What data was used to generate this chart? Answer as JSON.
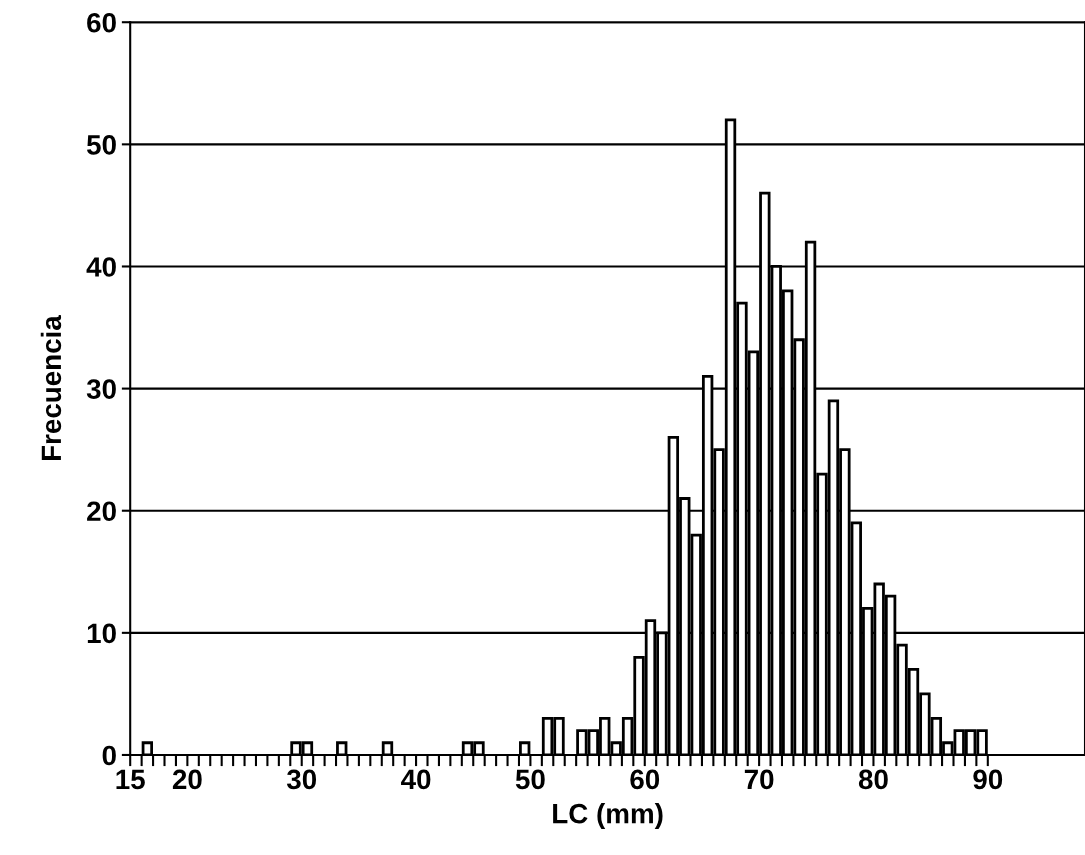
{
  "chart_data": {
    "type": "histogram",
    "xlabel": "LC (mm)",
    "ylabel": "Frecuencia",
    "bins": [
      15,
      16,
      17,
      18,
      19,
      20,
      21,
      22,
      23,
      24,
      25,
      26,
      27,
      28,
      29,
      30,
      31,
      32,
      33,
      34,
      35,
      36,
      37,
      38,
      39,
      40,
      41,
      42,
      43,
      44,
      45,
      46,
      47,
      48,
      49,
      50,
      51,
      52,
      53,
      54,
      55,
      56,
      57,
      58,
      59,
      60,
      61,
      62,
      63,
      64,
      65,
      66,
      67,
      68,
      69,
      70,
      71,
      72,
      73,
      74,
      75,
      76,
      77,
      78,
      79,
      80,
      81,
      82,
      83,
      84,
      85,
      86,
      87,
      88,
      89,
      90
    ],
    "values": [
      0,
      1,
      0,
      0,
      0,
      0,
      0,
      0,
      0,
      0,
      0,
      0,
      0,
      0,
      1,
      1,
      0,
      0,
      1,
      0,
      0,
      0,
      1,
      0,
      0,
      0,
      0,
      0,
      0,
      1,
      1,
      0,
      0,
      0,
      1,
      0,
      3,
      3,
      0,
      2,
      2,
      3,
      1,
      3,
      8,
      11,
      10,
      26,
      21,
      18,
      31,
      25,
      52,
      37,
      33,
      46,
      40,
      38,
      34,
      42,
      23,
      29,
      25,
      19,
      12,
      14,
      13,
      9,
      7,
      5,
      3,
      1,
      2,
      2,
      2
    ],
    "color": "#ffffff",
    "xlim": [
      15,
      98.5
    ],
    "xticks": [
      15,
      {
        "value": 16,
        "label": null
      },
      {
        "value": 17,
        "label": null
      },
      {
        "value": 18,
        "label": null
      },
      {
        "value": 19,
        "label": null
      },
      20,
      {
        "value": 21,
        "label": null
      },
      {
        "value": 22,
        "label": null
      },
      {
        "value": 23,
        "label": null
      },
      {
        "value": 24,
        "label": null
      },
      {
        "value": 25,
        "label": null
      },
      {
        "value": 26,
        "label": null
      },
      {
        "value": 27,
        "label": null
      },
      {
        "value": 28,
        "label": null
      },
      {
        "value": 29,
        "label": null
      },
      30,
      {
        "value": 31,
        "label": null
      },
      {
        "value": 32,
        "label": null
      },
      {
        "value": 33,
        "label": null
      },
      {
        "value": 34,
        "label": null
      },
      {
        "value": 35,
        "label": null
      },
      {
        "value": 36,
        "label": null
      },
      {
        "value": 37,
        "label": null
      },
      {
        "value": 38,
        "label": null
      },
      {
        "value": 39,
        "label": null
      },
      40,
      {
        "value": 41,
        "label": null
      },
      {
        "value": 42,
        "label": null
      },
      {
        "value": 43,
        "label": null
      },
      {
        "value": 44,
        "label": null
      },
      {
        "value": 45,
        "label": null
      },
      {
        "value": 46,
        "label": null
      },
      {
        "value": 47,
        "label": null
      },
      {
        "value": 48,
        "label": null
      },
      {
        "value": 49,
        "label": null
      },
      50,
      {
        "value": 51,
        "label": null
      },
      {
        "value": 52,
        "label": null
      },
      {
        "value": 53,
        "label": null
      },
      {
        "value": 54,
        "label": null
      },
      {
        "value": 55,
        "label": null
      },
      {
        "value": 56,
        "label": null
      },
      {
        "value": 57,
        "label": null
      },
      {
        "value": 58,
        "label": null
      },
      {
        "value": 59,
        "label": null
      },
      60,
      {
        "value": 61,
        "label": null
      },
      {
        "value": 62,
        "label": null
      },
      {
        "value": 63,
        "label": null
      },
      {
        "value": 64,
        "label": null
      },
      {
        "value": 65,
        "label": null
      },
      {
        "value": 66,
        "label": null
      },
      {
        "value": 67,
        "label": null
      },
      {
        "value": 68,
        "label": null
      },
      {
        "value": 69,
        "label": null
      },
      70,
      {
        "value": 71,
        "label": null
      },
      {
        "value": 72,
        "label": null
      },
      {
        "value": 73,
        "label": null
      },
      {
        "value": 74,
        "label": null
      },
      {
        "value": 75,
        "label": null
      },
      {
        "value": 76,
        "label": null
      },
      {
        "value": 77,
        "label": null
      },
      {
        "value": 78,
        "label": null
      },
      {
        "value": 79,
        "label": null
      },
      80,
      {
        "value": 81,
        "label": null
      },
      {
        "value": 82,
        "label": null
      },
      {
        "value": 83,
        "label": null
      },
      {
        "value": 84,
        "label": null
      },
      {
        "value": 85,
        "label": null
      },
      {
        "value": 86,
        "label": null
      },
      {
        "value": 87,
        "label": null
      },
      {
        "value": 88,
        "label": null
      },
      {
        "value": 89,
        "label": null
      },
      90
    ],
    "ylim": [
      0,
      60
    ],
    "yticks": [
      0,
      10,
      20,
      30,
      40,
      50,
      60
    ],
    "grid": "y"
  }
}
